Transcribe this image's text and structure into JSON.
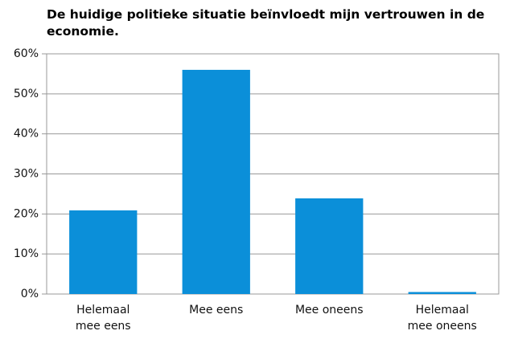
{
  "chart_data": {
    "type": "bar",
    "title": "De huidige politieke situatie beïnvloedt mijn vertrouwen in de economie.",
    "categories": [
      "Helemaal mee eens",
      "Mee eens",
      "Mee oneens",
      "Helemaal mee oneens"
    ],
    "values": [
      20.9,
      56,
      23.9,
      0.5
    ],
    "color": "#0b8fd9",
    "ylim": [
      0,
      60
    ],
    "yticks": [
      {
        "value": 0,
        "label": "0%"
      },
      {
        "value": 10,
        "label": "10%"
      },
      {
        "value": 20,
        "label": "20%"
      },
      {
        "value": 30,
        "label": "30%"
      },
      {
        "value": 40,
        "label": "40%"
      },
      {
        "value": 50,
        "label": "50%"
      },
      {
        "value": 60,
        "label": "60%"
      }
    ],
    "grid": true
  }
}
